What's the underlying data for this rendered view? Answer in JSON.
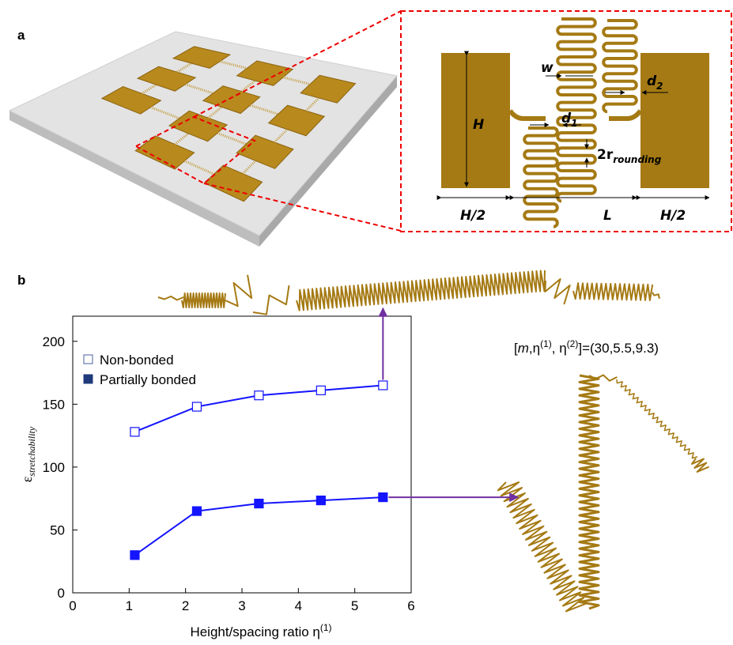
{
  "panel_labels": [
    "a",
    "b"
  ],
  "schematic": {
    "H": "H",
    "H_half_left": "H/2",
    "L": "L",
    "H_half_right": "H/2",
    "w": "w",
    "d1": {
      "base": "d",
      "sub": "1"
    },
    "d2": {
      "base": "d",
      "sub": "2"
    },
    "r": {
      "base": "2r",
      "sub": "rounding"
    }
  },
  "chart_data": {
    "type": "line",
    "xlabel": {
      "text": "Height/spacing ratio  η",
      "sup": "(1)"
    },
    "ylabel": {
      "symbol": "ε",
      "sub": "stretchability"
    },
    "annotation": [
      "[",
      "m",
      ",η",
      "(1)",
      ", η",
      "(2)",
      "]=(30,5.5,9.3)"
    ],
    "xlim": [
      0,
      6
    ],
    "xticks": [
      0,
      1,
      2,
      3,
      4,
      5,
      6
    ],
    "ylim": [
      0,
      220
    ],
    "yticks": [
      0,
      50,
      100,
      150,
      200
    ],
    "legend": "upper left",
    "x": [
      1.1,
      2.2,
      3.3,
      4.4,
      5.5
    ],
    "series": [
      {
        "name": "Non-bonded",
        "color": "#1414ff",
        "marker": "open-square",
        "values": [
          128,
          148,
          157,
          161,
          165
        ]
      },
      {
        "name": "Partially bonded",
        "color": "#1414ff",
        "marker": "filled-square",
        "values": [
          30,
          65,
          71,
          73.5,
          76
        ]
      }
    ]
  }
}
